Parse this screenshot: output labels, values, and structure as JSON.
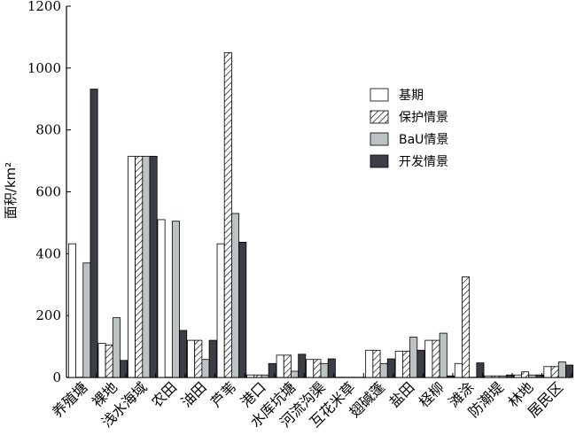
{
  "chart_data": {
    "type": "bar",
    "title": "",
    "xlabel": "",
    "ylabel": "面积/km²",
    "ylim": [
      0,
      1200
    ],
    "yticks": [
      0,
      200,
      400,
      600,
      800,
      1000,
      1200
    ],
    "grid": false,
    "legend_position": "right",
    "categories": [
      "养殖塘",
      "裸地",
      "浅水海域",
      "农田",
      "油田",
      "芦苇",
      "港口",
      "水库坑塘",
      "河流沟渠",
      "互花米草",
      "翅碱蓬",
      "盐田",
      "柽柳",
      "滩涂",
      "防潮堤",
      "林地",
      "居民区"
    ],
    "series": [
      {
        "name": "基期",
        "pattern": "white",
        "values": [
          432,
          110,
          715,
          510,
          120,
          432,
          8,
          72,
          58,
          0,
          88,
          85,
          120,
          45,
          5,
          8,
          35
        ]
      },
      {
        "name": "保护情景",
        "pattern": "hatch",
        "values": [
          0,
          105,
          715,
          0,
          120,
          1050,
          8,
          72,
          58,
          0,
          88,
          85,
          120,
          325,
          5,
          18,
          35
        ]
      },
      {
        "name": "BaU情景",
        "pattern": "gray",
        "values": [
          370,
          193,
          715,
          505,
          58,
          530,
          8,
          20,
          45,
          0,
          45,
          130,
          143,
          0,
          5,
          8,
          50
        ]
      },
      {
        "name": "开发情景",
        "pattern": "dark",
        "values": [
          932,
          55,
          715,
          152,
          120,
          437,
          45,
          75,
          60,
          0,
          60,
          88,
          5,
          47,
          8,
          8,
          40
        ]
      }
    ],
    "colors": {
      "white": "#ffffff",
      "gray": "#bdc3c3",
      "dark": "#3b3f45",
      "edge": "#000000"
    }
  }
}
